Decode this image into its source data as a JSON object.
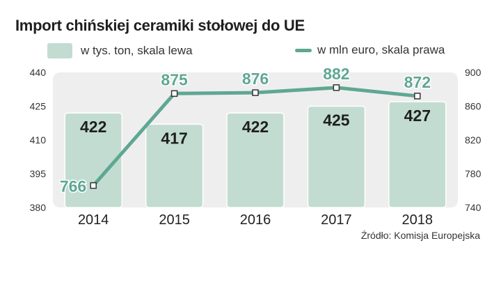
{
  "chart_data": {
    "type": "bar",
    "title": "Import chińskiej ceramiki stołowej do UE",
    "categories": [
      "2014",
      "2015",
      "2016",
      "2017",
      "2018"
    ],
    "series": [
      {
        "name": "w tys. ton, skala lewa",
        "type": "bar",
        "axis": "left",
        "values": [
          422,
          417,
          422,
          425,
          427
        ],
        "color": "#c3dcd2"
      },
      {
        "name": "w mln euro, skala prawa",
        "type": "line",
        "axis": "right",
        "values": [
          766,
          875,
          876,
          882,
          872
        ],
        "color": "#5fa793"
      }
    ],
    "y_left": {
      "ylim": [
        380,
        440
      ],
      "ticks": [
        380,
        395,
        410,
        425,
        440
      ]
    },
    "y_right": {
      "ylim": [
        740,
        900
      ],
      "ticks": [
        740,
        780,
        820,
        860,
        900
      ]
    },
    "grid": false,
    "legend_position": "top"
  },
  "source": "Źródło: Komisja Europejska",
  "colors": {
    "plot_background": "#eeeeee",
    "bar_fill": "#c3dcd2",
    "line": "#5fa793",
    "bar_label": "#1f1f1f",
    "line_label": "#5fa793",
    "axis_text": "#333333"
  }
}
